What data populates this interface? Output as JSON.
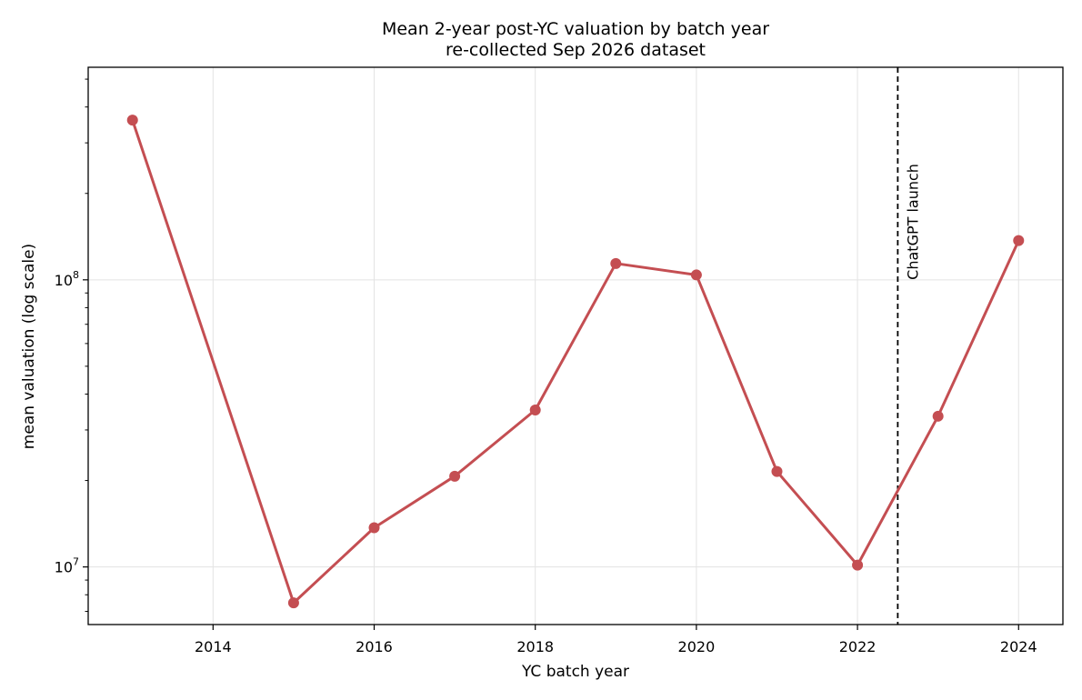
{
  "chart_data": {
    "type": "line",
    "title": "Mean 2-year post-YC valuation by batch year",
    "subtitle": "re-collected Sep 2026 dataset",
    "xlabel": "YC batch year",
    "ylabel": "mean valuation (log scale)",
    "yscale": "log",
    "xlim": [
      2012.45,
      2024.55
    ],
    "ylim": [
      6300000,
      550000000
    ],
    "x_ticks": [
      2014,
      2016,
      2018,
      2020,
      2022,
      2024
    ],
    "y_ticks": [
      {
        "value": 10000000,
        "base": "10",
        "exp": "7"
      },
      {
        "value": 100000000,
        "base": "10",
        "exp": "8"
      }
    ],
    "grid": true,
    "series": [
      {
        "color": "#c44e52",
        "x": [
          2013,
          2015,
          2016,
          2017,
          2018,
          2019,
          2020,
          2021,
          2022,
          2023,
          2024
        ],
        "y": [
          360000000,
          7500000,
          13700000,
          20700000,
          35200000,
          114000000,
          104000000,
          21500000,
          10150000,
          33500000,
          137000000
        ]
      }
    ],
    "annotations": [
      {
        "x": 2022.5,
        "style": "dashed",
        "color": "#000000",
        "label": "ChatGPT launch"
      }
    ]
  }
}
